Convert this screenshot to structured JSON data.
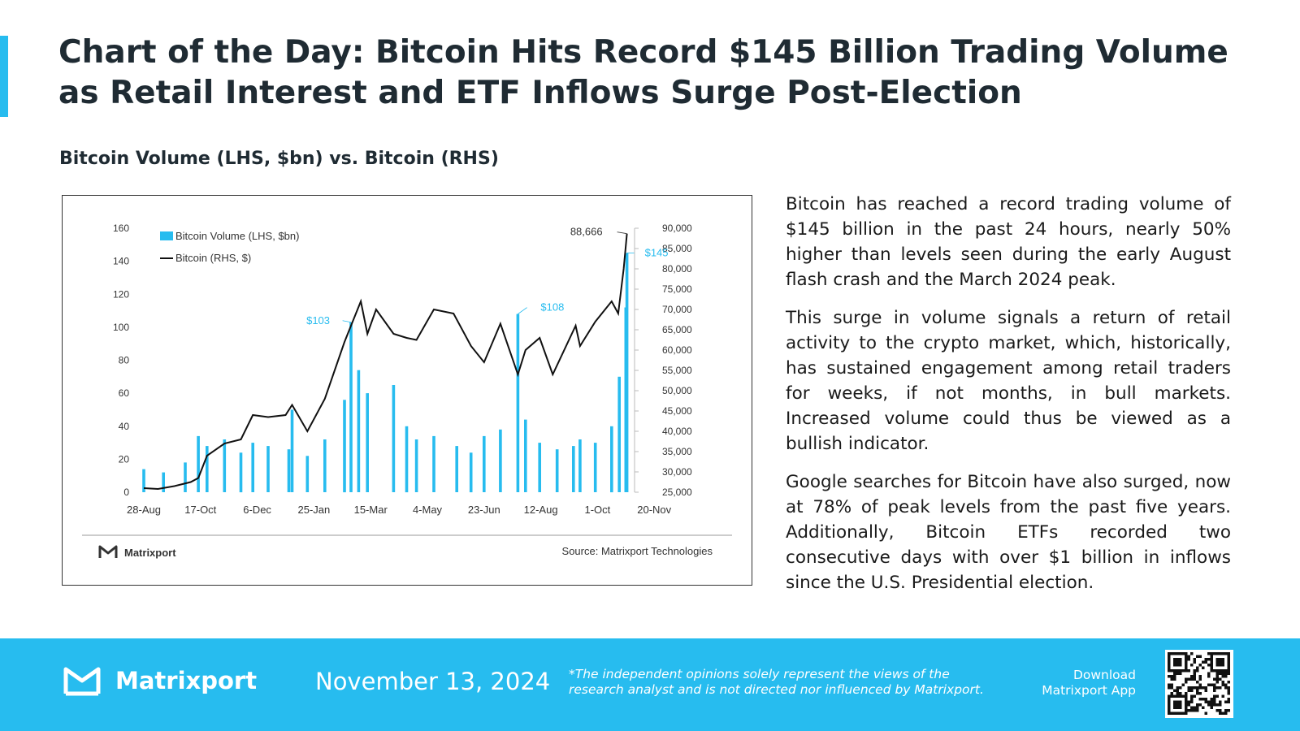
{
  "header": {
    "title": "Chart of the Day: Bitcoin Hits Record $145 Billion Trading Volume as Retail Interest and ETF Inflows Surge Post-Election",
    "chart_subtitle": "Bitcoin Volume (LHS, $bn) vs. Bitcoin (RHS)"
  },
  "colors": {
    "accent": "#27bcef",
    "volume_bar": "#27bcef",
    "price_line": "#111111",
    "footer_bg": "#27bcef"
  },
  "chart_data": {
    "type": "bar",
    "x_tick_labels": [
      "28-Aug",
      "17-Oct",
      "6-Dec",
      "25-Jan",
      "15-Mar",
      "4-May",
      "23-Jun",
      "12-Aug",
      "1-Oct",
      "20-Nov"
    ],
    "left_axis": {
      "ticks": [
        "0",
        "20",
        "40",
        "60",
        "80",
        "100",
        "120",
        "140",
        "160"
      ],
      "ylim": [
        0,
        160
      ]
    },
    "right_axis": {
      "ticks": [
        "25,000",
        "30,000",
        "35,000",
        "40,000",
        "45,000",
        "50,000",
        "55,000",
        "60,000",
        "65,000",
        "70,000",
        "75,000",
        "80,000",
        "85,000",
        "90,000"
      ],
      "ylim": [
        25000,
        90000
      ]
    },
    "legend": {
      "position": "top-left",
      "entries": [
        "Bitcoin Volume (LHS, $bn)",
        "Bitcoin (RHS, $)"
      ]
    },
    "series": [
      {
        "name": "Bitcoin Volume (LHS, $bn)",
        "type": "bar",
        "x": [
          "2023-08-28",
          "2023-09-15",
          "2023-10-05",
          "2023-10-17",
          "2023-10-25",
          "2023-11-10",
          "2023-11-25",
          "2023-12-06",
          "2023-12-20",
          "2024-01-08",
          "2024-01-11",
          "2024-01-25",
          "2024-02-10",
          "2024-02-28",
          "2024-03-05",
          "2024-03-12",
          "2024-03-20",
          "2024-04-13",
          "2024-04-25",
          "2024-05-04",
          "2024-05-20",
          "2024-06-10",
          "2024-06-23",
          "2024-07-05",
          "2024-07-20",
          "2024-08-05",
          "2024-08-12",
          "2024-08-25",
          "2024-09-10",
          "2024-09-25",
          "2024-10-01",
          "2024-10-15",
          "2024-10-30",
          "2024-11-06",
          "2024-11-12",
          "2024-11-13"
        ],
        "values": [
          14,
          12,
          18,
          34,
          28,
          32,
          24,
          30,
          28,
          26,
          50,
          22,
          32,
          56,
          103,
          74,
          60,
          65,
          40,
          32,
          34,
          28,
          24,
          34,
          38,
          108,
          44,
          30,
          26,
          28,
          32,
          30,
          40,
          70,
          112,
          145
        ]
      },
      {
        "name": "Bitcoin (RHS, $)",
        "type": "line",
        "x": [
          "2023-08-28",
          "2023-09-10",
          "2023-09-25",
          "2023-10-10",
          "2023-10-17",
          "2023-10-25",
          "2023-11-10",
          "2023-11-25",
          "2023-12-06",
          "2023-12-20",
          "2024-01-05",
          "2024-01-11",
          "2024-01-25",
          "2024-02-10",
          "2024-02-28",
          "2024-03-05",
          "2024-03-14",
          "2024-03-20",
          "2024-03-28",
          "2024-04-13",
          "2024-04-25",
          "2024-05-04",
          "2024-05-20",
          "2024-06-07",
          "2024-06-23",
          "2024-07-05",
          "2024-07-20",
          "2024-08-05",
          "2024-08-12",
          "2024-08-25",
          "2024-09-06",
          "2024-09-27",
          "2024-10-01",
          "2024-10-15",
          "2024-10-30",
          "2024-11-05",
          "2024-11-10",
          "2024-11-13"
        ],
        "values": [
          26000,
          25800,
          26500,
          27500,
          28500,
          34000,
          37000,
          38000,
          44000,
          43500,
          44000,
          46500,
          40000,
          48000,
          62000,
          66000,
          72000,
          64000,
          70000,
          64000,
          63000,
          62500,
          70000,
          69000,
          61000,
          57000,
          66500,
          54000,
          60000,
          63000,
          54000,
          66000,
          61000,
          67000,
          72000,
          69000,
          80000,
          88666
        ]
      }
    ],
    "annotations": [
      {
        "text": "$103",
        "series": "Bitcoin Volume (LHS, $bn)"
      },
      {
        "text": "$108",
        "series": "Bitcoin Volume (LHS, $bn)"
      },
      {
        "text": "$145",
        "series": "Bitcoin Volume (LHS, $bn)"
      },
      {
        "text": "88,666",
        "series": "Bitcoin (RHS, $)"
      }
    ],
    "brand": "Matrixport",
    "source": "Source: Matrixport Technologies"
  },
  "body": {
    "paragraphs": [
      "Bitcoin has reached a record trading volume of $145 billion in the past 24 hours, nearly 50% higher than levels seen during the early August flash crash and the March 2024 peak.",
      "This surge in volume signals a return of retail activity to the crypto market, which, historically, has sustained engagement among retail traders for weeks, if not months, in bull markets. Increased volume could thus be viewed as a bullish indicator.",
      "Google searches for Bitcoin have also surged, now at 78% of peak levels from the past five years. Additionally, Bitcoin ETFs recorded two consecutive days with over $1 billion in inflows since the U.S. Presidential election."
    ]
  },
  "footer": {
    "brand": "Matrixport",
    "date": "November 13, 2024",
    "disclaimer": "*The independent opinions solely represent the views of the research analyst and is not directed nor influenced by Matrixport.",
    "download_line1": "Download",
    "download_line2": "Matrixport App"
  }
}
